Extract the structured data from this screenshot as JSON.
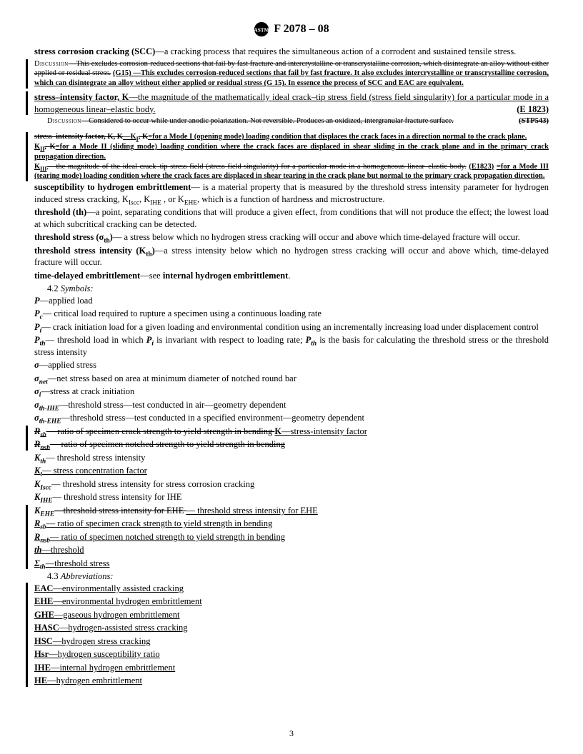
{
  "header": {
    "designation": "F 2078 – 08"
  },
  "defs": {
    "scc_term": "stress corrosion cracking (SCC)",
    "scc_body": "—a cracking process that requires the simultaneous action of a corrodent and sustained tensile stress.",
    "scc_disc_label": "Discussion",
    "scc_disc_strike": "—This excludes corrosion-reduced sections that fail by fast fracture and intercrystalline or transcrystalline corrosion, which disintegrate an alloy without either applied or residual stress.",
    "scc_disc_g15": "(G15)",
    "scc_disc_new": "—This excludes corrosion-reduced sections that fail by fast fracture. It also excludes intercrystalline or transcrystalline corrosion, which can disintegrate an alloy without either applied or residual stress (G 15). In essence the process of SCC and EAC are equivalent.",
    "k_term": "stress–intensity factor, K",
    "k_body": "—the magnitude of the mathematically ideal crack–tip stress field (stress field singularity) for a particular mode in a homogeneous linear–elastic body.",
    "k_ref": "(E 1823)",
    "k_disc_label": "Discussion",
    "k_disc_strike": "—Considered to occur while under anodic polarization. Not reversible. Produces an oxidized, intergranular fracture surface.",
    "k_disc_ref": "(STP543)",
    "kmodes_term_strike": "stress–intensity factor, K, K",
    "kmodes_k1": "—K",
    "kmodes_k1_lab": ", K",
    "kmodes_m1": "=for a Mode I (opening mode) loading condition that displaces the crack faces in a direction normal to the crack plane.",
    "kmodes_k2": "K",
    "kmodes_k2b": ", K",
    "kmodes_m2": "=for a Mode II (sliding mode) loading condition where the crack faces are displaced in shear sliding in the crack plane and in the primary crack propagation direction.",
    "kmodes_k3": "K",
    "kmodes_strike2": ",—the magnitude of the ideal crack–tip stress field (stress field singularity) for a particular mode in a homogeneous linear–elastic body.",
    "kmodes_ref": "(E1823)",
    "kmodes_m3": "=for a Mode III (tearing mode) loading condition where the crack faces are displaced in shear tearing in the crack plane but normal to the primary crack propagation direction.",
    "susc_term": "susceptibility to hydrogen embrittlement",
    "susc_body1": "— is a material property that is measured by the threshold stress intensity parameter for hydrogen induced stress cracking, K",
    "susc_body2": ", K",
    "susc_body3": " , or K",
    "susc_body4": ", which is a function of hardness and microstructure.",
    "thr_term": "threshold (th)",
    "thr_body": "—a point, separating conditions that will produce a given effect, from conditions that will not produce the effect; the lowest load at which subcritical cracking can be detected.",
    "ts_term_a": "threshold stress (σ",
    "ts_term_b": ")",
    "ts_body": "— a stress below which no hydrogen stress cracking will occur and above which time-delayed fracture will occur.",
    "tsi_term_a": "threshold stress intensity (K",
    "tsi_term_b": ")",
    "tsi_body": "—a stress intensity below which no hydrogen stress cracking will occur and above which, time-delayed fracture will occur.",
    "tde_term": "time-delayed embrittlement",
    "tde_body": "—see ",
    "tde_bold": "internal hydrogen embrittlement"
  },
  "symbols_header": {
    "num": "4.2",
    "label": "Symbols:"
  },
  "symbols": {
    "P": {
      "s": "P",
      "d": "—applied load"
    },
    "Pc": {
      "s": "P",
      "sub": "c",
      "d": "— critical load required to rupture a specimen using a continuous loading rate"
    },
    "Pi": {
      "s": "P",
      "sub": "i",
      "d": "— crack initiation load for a given loading and environmental condition using an incrementally increasing load under displacement control"
    },
    "Pth_a": "— threshold load in which ",
    "Pth_b": " is invariant with respect to loading rate; ",
    "Pth_c": " is the basis for calculating the threshold stress or the threshold stress intensity",
    "sig": {
      "s": "σ",
      "d": "—applied stress"
    },
    "signet": {
      "s": "σ",
      "sub": "net",
      "d": "—net stress based on area at minimum diameter of notched round bar"
    },
    "sigi": {
      "s": "σ",
      "sub": "i",
      "d": "—stress at crack initiation"
    },
    "sigihe": {
      "s": "σ",
      "sub": "th-IHE",
      "d": "—threshold stress—test conducted in air—geometry dependent"
    },
    "sigehe": {
      "s": "σ",
      "sub": "th-EHE",
      "d": "—threshold stress—test conducted in a specified environment—geometry dependent"
    },
    "Rsb_strike": "— ratio of specimen crack strength to yield strength in bending ",
    "Rsb_k": "K",
    "Rsb_knew": "—stress-intensity factor",
    "Rnsb_strike": "— ratio of specimen notched strength to yield strength in bending",
    "Kth": {
      "s": "K",
      "sub": "th",
      "d": "— threshold stress intensity"
    },
    "Kt": {
      "s": "K",
      "sub": "t",
      "d": "— stress concentration factor"
    },
    "KIscc": {
      "s": "K",
      "sub": "Iscc",
      "d": "— threshold stress intensity for stress corrosion cracking"
    },
    "KIHE": {
      "s": "K",
      "sub": "IHE",
      "d": "— threshold stress intensity for IHE"
    },
    "KEHE_strike": "—threshold stress intensity for EHE ",
    "KEHE_new": "— threshold stress intensity for EHE",
    "Rsb2": {
      "s": "R",
      "sub": "sb",
      "d": "— ratio of specimen crack strength to yield strength in bending"
    },
    "Rnsb2": {
      "s": "R",
      "sub": "nsb",
      "d": "— ratio of specimen notched strength to yield strength in bending"
    },
    "th": {
      "s": "th",
      "d": "—threshold"
    },
    "Sigth": {
      "s": "Σ",
      "sub": "th",
      "d": "—threshold stress"
    }
  },
  "abbr_header": {
    "num": "4.3",
    "label": "Abbreviations:"
  },
  "abbr": [
    {
      "a": "EAC",
      "d": "—environmentally assisted cracking"
    },
    {
      "a": "EHE",
      "d": "—environmental hydrogen embrittlement"
    },
    {
      "a": "GHE",
      "d": "—gaseous hydrogen embrittlement"
    },
    {
      "a": "HASC",
      "d": "—hydrogen-assisted stress cracking"
    },
    {
      "a": "HSC",
      "d": "—hydrogen stress cracking"
    },
    {
      "a": "Hsr",
      "d": "—hydrogen susceptibility ratio"
    },
    {
      "a": "IHE",
      "d": "—internal hydrogen embrittlement"
    },
    {
      "a": "HE",
      "d": "—hydrogen embrittlement"
    }
  ],
  "pagenum": "3"
}
